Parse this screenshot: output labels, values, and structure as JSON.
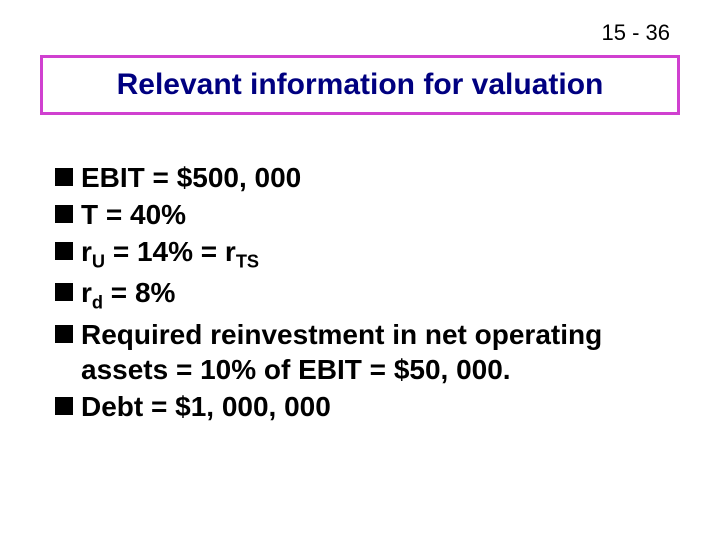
{
  "page_number": "15 - 36",
  "title": "Relevant information for valuation",
  "colors": {
    "title_border": "#d040d0",
    "title_text": "#000080",
    "bullet_marker": "#000000",
    "body_text": "#000000",
    "background": "#ffffff"
  },
  "typography": {
    "title_fontsize_pt": 30,
    "body_fontsize_pt": 28,
    "page_number_fontsize_pt": 22,
    "font_family": "Arial",
    "body_weight": "bold",
    "title_weight": "bold"
  },
  "bullets": [
    {
      "text": "EBIT = $500, 000"
    },
    {
      "text": "T = 40%"
    },
    {
      "prefix": "r",
      "sub1": "U",
      "mid": " = 14% = r",
      "sub2": "TS"
    },
    {
      "prefix": "r",
      "sub1": "d",
      "mid": " = 8%"
    },
    {
      "text": "Required reinvestment in net operating assets = 10% of EBIT = $50, 000."
    },
    {
      "text": "Debt = $1, 000, 000"
    }
  ]
}
